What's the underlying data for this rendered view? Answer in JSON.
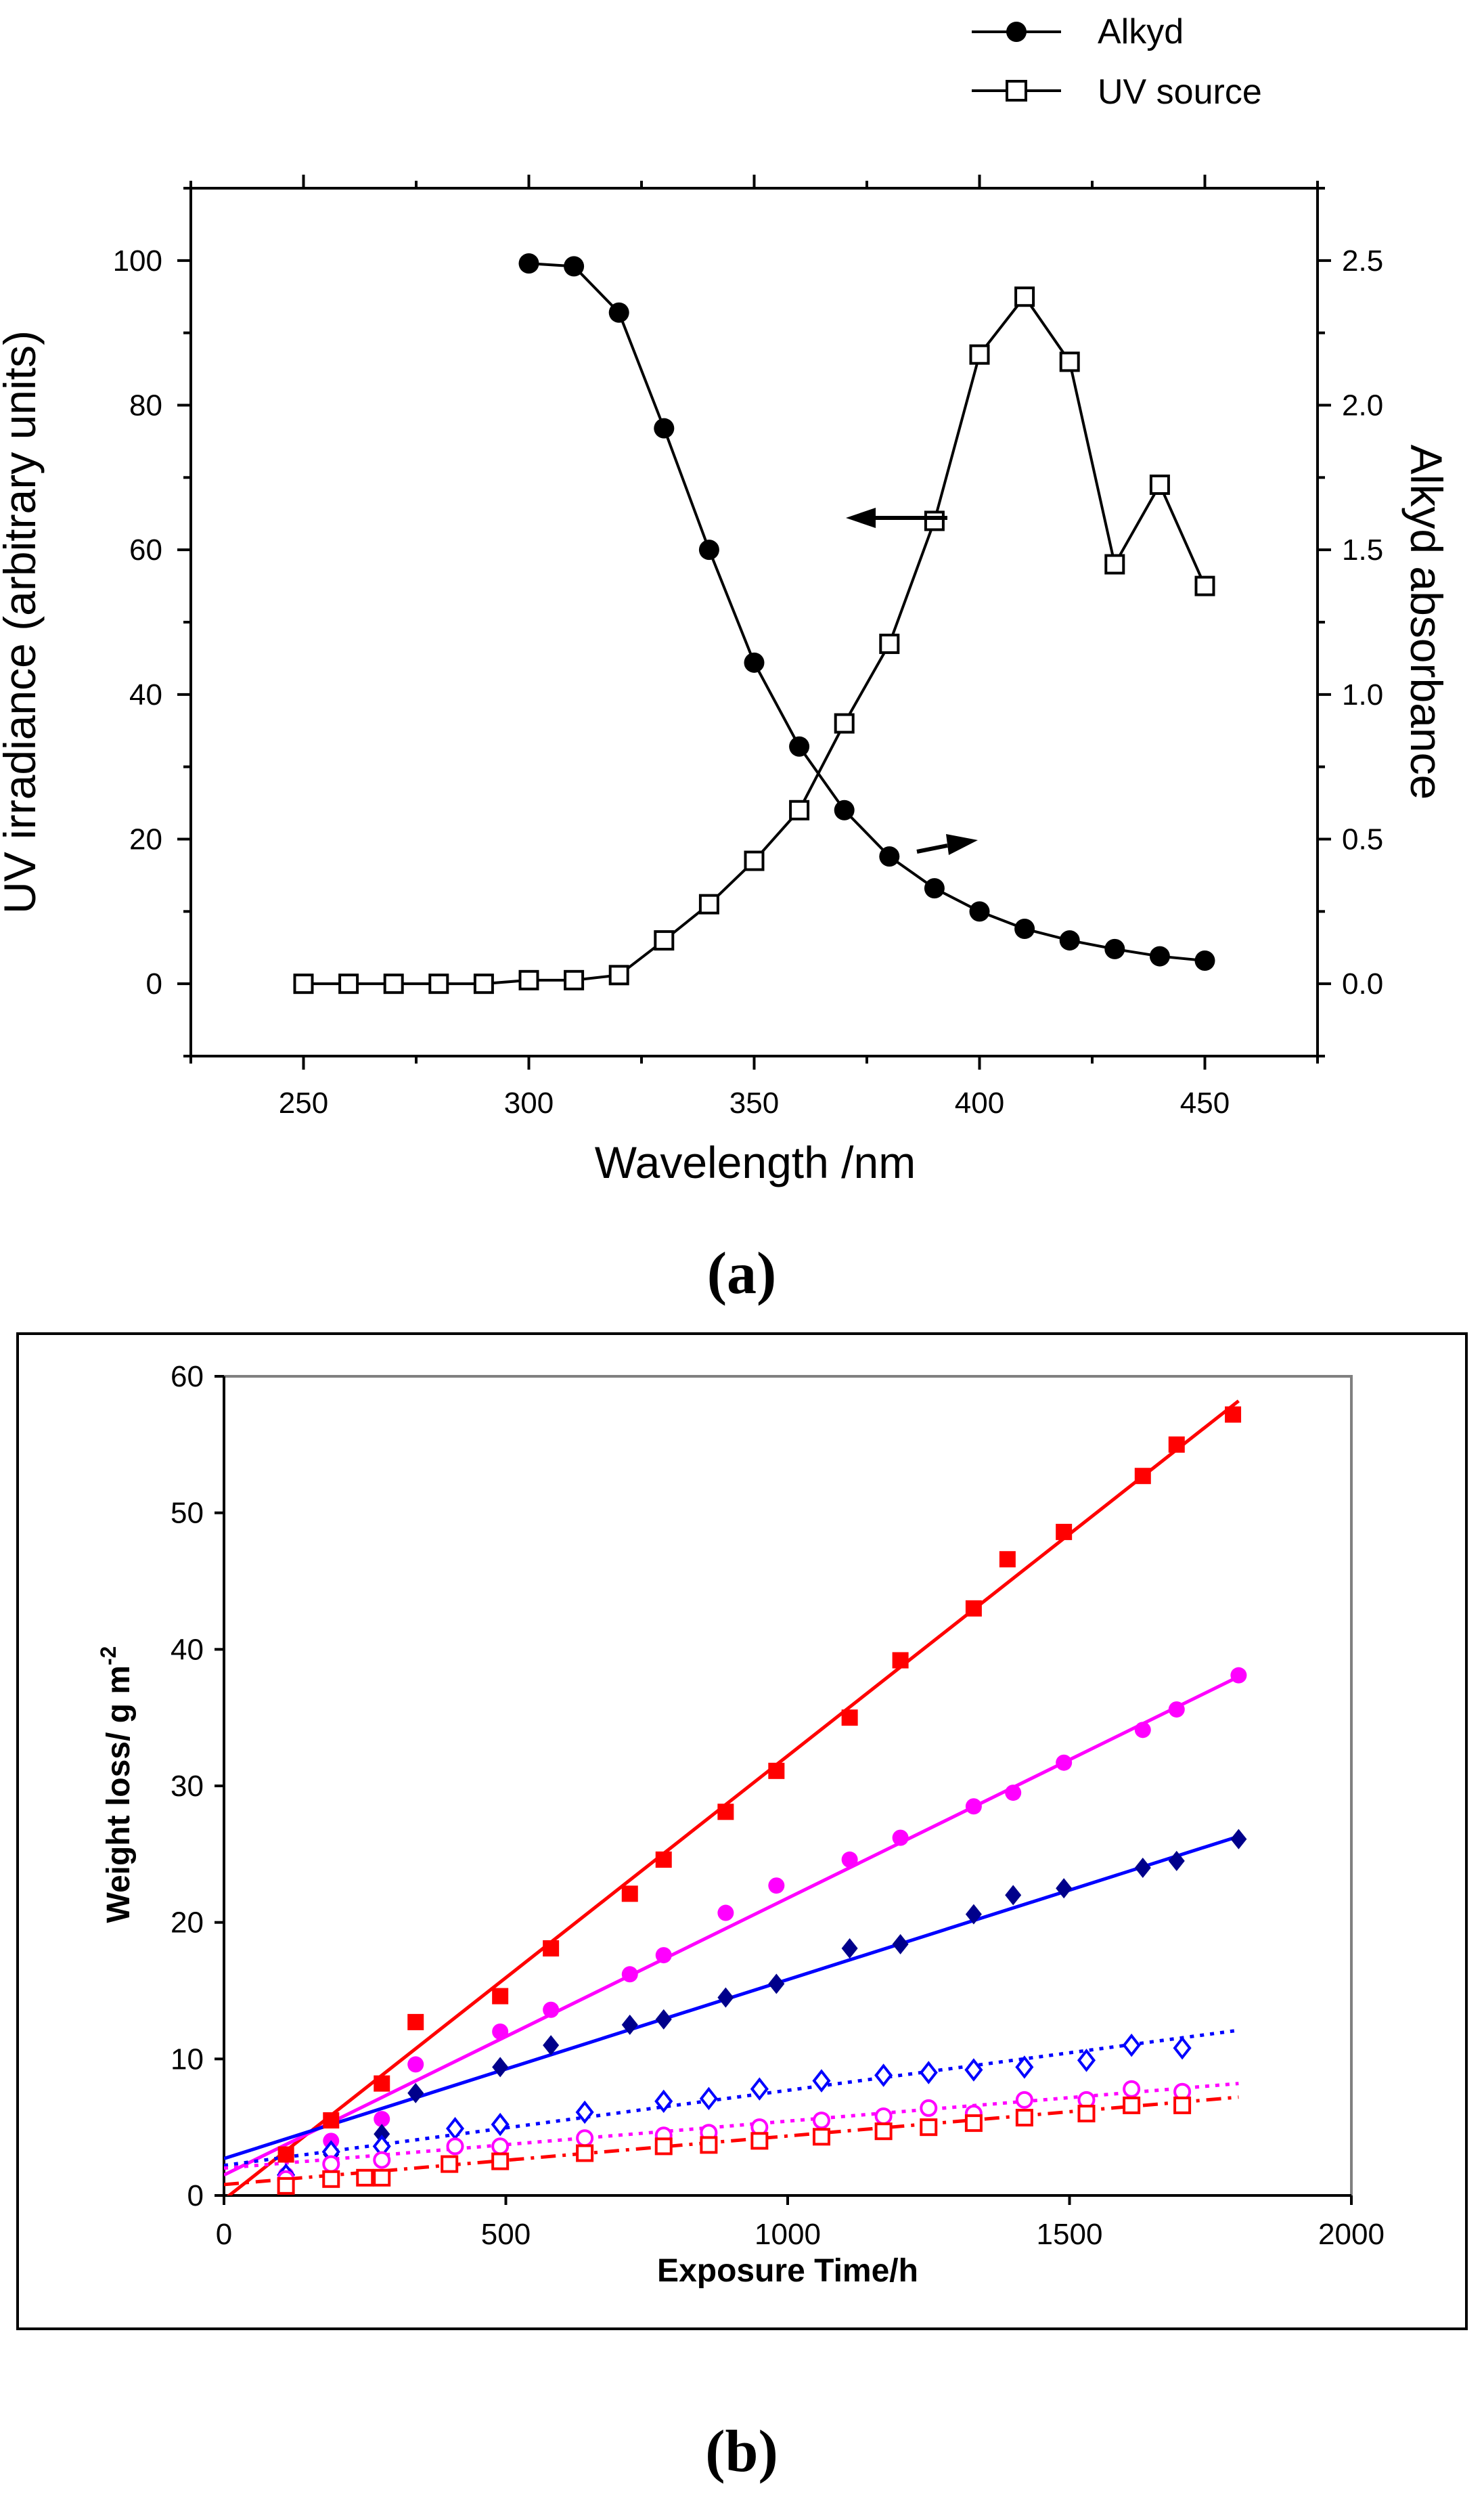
{
  "chart_data": [
    {
      "type": "line",
      "panel_label": "(a)",
      "xlabel": "Wavelength /nm",
      "ylabel_left": "UV irradiance (arbitrary units)",
      "ylabel_right": "Alkyd absorbance",
      "xlim": [
        225,
        475
      ],
      "ylim_left": [
        -10,
        110
      ],
      "ylim_right": [
        -0.25,
        2.75
      ],
      "xticks": [
        250,
        300,
        350,
        400,
        450
      ],
      "yticks_left": [
        0,
        20,
        40,
        60,
        80,
        100
      ],
      "yticks_right": [
        "0.0",
        "0.5",
        "1.0",
        "1.5",
        "2.0",
        "2.5"
      ],
      "legend": {
        "position": "top-right",
        "entries": [
          "Alkyd",
          "UV source"
        ]
      },
      "series": [
        {
          "name": "Alkyd",
          "axis": "right",
          "marker": "filled-circle",
          "x": [
            300,
            310,
            320,
            330,
            340,
            350,
            360,
            370,
            380,
            390,
            400,
            410,
            420,
            430,
            440,
            450
          ],
          "values": [
            2.49,
            2.48,
            2.32,
            1.92,
            1.5,
            1.11,
            0.82,
            0.6,
            0.44,
            0.33,
            0.25,
            0.19,
            0.15,
            0.12,
            0.095,
            0.08
          ]
        },
        {
          "name": "UV source",
          "axis": "left",
          "marker": "open-square",
          "x": [
            250,
            260,
            270,
            280,
            290,
            300,
            310,
            320,
            330,
            340,
            350,
            360,
            370,
            380,
            390,
            400,
            410,
            420,
            430,
            440,
            450
          ],
          "values": [
            0,
            0,
            0,
            0,
            0,
            0.5,
            0.5,
            1.2,
            6,
            11,
            17,
            24,
            36,
            47,
            64,
            87,
            95,
            86,
            58,
            69,
            55
          ]
        }
      ],
      "annotations": [
        {
          "type": "arrow",
          "points_to": "left",
          "x": 372,
          "y": 64
        },
        {
          "type": "arrow",
          "points_to": "right",
          "x": 383,
          "y": 19
        }
      ]
    },
    {
      "type": "scatter",
      "panel_label": "(b)",
      "xlabel": "Exposure Time/h",
      "ylabel": "Weight loss/ g m",
      "ylabel_sup": "-2",
      "xlim": [
        0,
        2000
      ],
      "ylim": [
        0,
        60
      ],
      "xticks": [
        0,
        500,
        1000,
        1500,
        2000
      ],
      "yticks": [
        0,
        10,
        20,
        30,
        40,
        50,
        60
      ],
      "series": [
        {
          "name": "red filled squares",
          "color": "#ff0000",
          "marker": "filled-square",
          "x": [
            110,
            190,
            280,
            340,
            490,
            580,
            720,
            780,
            890,
            980,
            1110,
            1200,
            1330,
            1390,
            1490,
            1630,
            1690,
            1790
          ],
          "values": [
            3.0,
            5.5,
            8.2,
            12.7,
            14.6,
            18.1,
            22.1,
            24.6,
            28.1,
            31.1,
            35.0,
            39.2,
            43.0,
            46.6,
            48.6,
            52.7,
            55.0,
            57.2
          ],
          "fit": {
            "style": "solid",
            "x": [
              0,
              1800
            ],
            "values": [
              -0.3,
              58.2
            ]
          }
        },
        {
          "name": "magenta filled circles",
          "color": "#ff00ff",
          "marker": "filled-circle",
          "x": [
            110,
            190,
            280,
            340,
            490,
            580,
            720,
            780,
            890,
            980,
            1110,
            1200,
            1330,
            1400,
            1490,
            1630,
            1690,
            1800
          ],
          "values": [
            1.5,
            4.0,
            5.6,
            9.6,
            12.0,
            13.6,
            16.2,
            17.6,
            20.7,
            22.7,
            24.6,
            26.2,
            28.5,
            29.5,
            31.7,
            34.1,
            35.6,
            38.1
          ],
          "fit": {
            "style": "solid",
            "x": [
              0,
              1800
            ],
            "values": [
              1.5,
              38.0
            ]
          }
        },
        {
          "name": "navy filled diamonds",
          "color": "#00008b",
          "marker": "filled-diamond",
          "x": [
            110,
            190,
            280,
            340,
            490,
            580,
            720,
            780,
            890,
            980,
            1110,
            1200,
            1330,
            1400,
            1490,
            1630,
            1690,
            1800
          ],
          "values": [
            1.2,
            3.0,
            4.5,
            7.5,
            9.4,
            11.0,
            12.5,
            12.9,
            14.5,
            15.5,
            18.1,
            18.4,
            20.6,
            22.0,
            22.5,
            24.0,
            24.5,
            26.1
          ],
          "fit": {
            "style": "solid",
            "line_color": "#0000ff",
            "x": [
              0,
              1800
            ],
            "values": [
              2.7,
              26.3
            ]
          }
        },
        {
          "name": "blue open diamonds",
          "color": "#0000ff",
          "marker": "open-diamond",
          "x": [
            110,
            190,
            280,
            410,
            490,
            640,
            780,
            860,
            950,
            1060,
            1170,
            1250,
            1330,
            1420,
            1530,
            1610,
            1700
          ],
          "values": [
            1.5,
            3.2,
            3.6,
            4.9,
            5.2,
            6.1,
            6.9,
            7.1,
            7.8,
            8.4,
            8.8,
            9.0,
            9.2,
            9.4,
            9.9,
            11.0,
            10.8
          ],
          "fit": {
            "style": "dotted",
            "x": [
              0,
              1800
            ],
            "values": [
              2.2,
              12.1
            ]
          }
        },
        {
          "name": "magenta open circles",
          "color": "#ff00ff",
          "marker": "open-circle",
          "x": [
            110,
            190,
            280,
            410,
            490,
            640,
            780,
            860,
            950,
            1060,
            1170,
            1250,
            1330,
            1420,
            1530,
            1610,
            1700
          ],
          "values": [
            1.2,
            2.3,
            2.6,
            3.6,
            3.6,
            4.2,
            4.4,
            4.6,
            5.0,
            5.5,
            5.8,
            6.4,
            6.0,
            7.0,
            7.0,
            7.8,
            7.6
          ],
          "fit": {
            "style": "dotted",
            "x": [
              0,
              1800
            ],
            "values": [
              2.0,
              8.2
            ]
          }
        },
        {
          "name": "red open squares",
          "color": "#ff0000",
          "marker": "open-square",
          "x": [
            110,
            190,
            250,
            280,
            400,
            490,
            640,
            780,
            860,
            950,
            1060,
            1170,
            1250,
            1330,
            1420,
            1530,
            1610,
            1700
          ],
          "values": [
            0.7,
            1.2,
            1.3,
            1.3,
            2.3,
            2.5,
            3.1,
            3.6,
            3.7,
            4.0,
            4.3,
            4.7,
            5.0,
            5.3,
            5.7,
            6.0,
            6.6,
            6.6
          ],
          "fit": {
            "style": "dash-dot",
            "x": [
              0,
              1800
            ],
            "values": [
              0.8,
              7.2
            ]
          }
        }
      ]
    }
  ]
}
